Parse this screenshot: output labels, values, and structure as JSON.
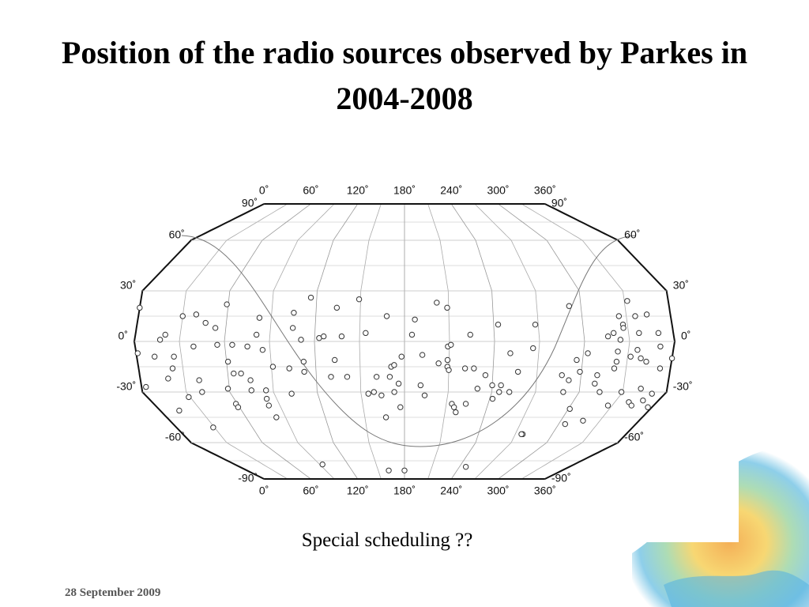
{
  "title": "Position of the radio sources observed by Parkes in 2004-2008",
  "subtitle": "Special scheduling ??",
  "date": "28 September 2009",
  "chart_data": {
    "type": "scatter",
    "xlim": [
      0,
      360
    ],
    "xticks": [
      {
        "value": 0,
        "label": "0˚"
      },
      {
        "value": 60,
        "label": "60˚"
      },
      {
        "value": 120,
        "label": "120˚"
      },
      {
        "value": 180,
        "label": "180˚"
      },
      {
        "value": 240,
        "label": "240˚"
      },
      {
        "value": 300,
        "label": "300˚"
      },
      {
        "value": 360,
        "label": "360˚"
      }
    ],
    "ylim": [
      -90,
      90
    ],
    "yticks": [
      {
        "value": -90,
        "label": "-90˚"
      },
      {
        "value": -60,
        "label": "-60˚"
      },
      {
        "value": -30,
        "label": "-30˚"
      },
      {
        "value": 0,
        "label": "0˚"
      },
      {
        "value": 30,
        "label": "30˚"
      },
      {
        "value": 60,
        "label": "60˚"
      },
      {
        "value": 90,
        "label": "90˚"
      }
    ],
    "color": "#333333",
    "grid": true,
    "x": [
      0,
      1,
      3,
      17,
      20,
      12,
      19,
      23,
      25,
      14,
      30,
      29,
      39,
      39,
      40,
      41,
      46,
      29,
      53,
      55,
      59,
      61,
      59,
      65,
      64,
      59,
      59,
      69,
      75,
      75,
      75,
      81,
      82,
      85,
      85,
      83,
      82,
      91,
      83,
      102,
      102,
      105,
      105,
      111,
      112,
      112,
      116,
      123,
      126,
      130,
      133,
      134,
      138,
      141,
      149,
      154,
      155,
      159,
      161,
      164,
      166,
      168,
      170,
      171,
      173,
      173,
      176,
      177,
      178,
      180,
      185,
      187,
      191,
      192,
      194,
      202,
      203,
      209,
      209,
      209,
      209,
      210,
      211,
      214,
      216,
      218,
      221,
      224,
      224,
      227,
      230,
      235,
      240,
      242,
      243,
      245,
      246,
      252,
      251,
      257,
      276,
      266,
      268,
      287,
      289,
      305,
      292,
      292,
      301,
      296,
      299,
      317,
      303,
      310,
      311,
      314,
      327,
      316,
      320,
      322,
      323,
      323,
      325,
      324,
      329,
      327,
      327,
      332,
      340,
      332,
      344,
      336,
      336,
      337,
      339,
      342,
      349,
      344,
      343,
      357,
      351,
      350,
      351,
      353,
      360,
      93,
      162,
      247,
      275
    ],
    "y": [
      20,
      -7,
      -27,
      1,
      4,
      -9,
      -22,
      -16,
      -9,
      -41,
      15,
      -33,
      16,
      -3,
      -23,
      -30,
      11,
      -51,
      8,
      -2,
      22,
      -12,
      -28,
      -2,
      -19,
      -37,
      -39,
      -19,
      -3,
      -23,
      -29,
      4,
      14,
      -5,
      -29,
      -34,
      -38,
      -15,
      -45,
      -16,
      -31,
      8,
      17,
      1,
      -18,
      -12,
      26,
      2,
      3,
      -21,
      -11,
      20,
      3,
      -21,
      25,
      5,
      -31,
      -30,
      -21,
      -32,
      -45,
      15,
      -21,
      -15,
      -14,
      -30,
      -25,
      -39,
      -9,
      -83,
      4,
      13,
      -26,
      -8,
      -32,
      23,
      -13,
      20,
      -3,
      -11,
      -15,
      -17,
      -2,
      -37,
      -39,
      -42,
      -16,
      -37,
      4,
      -16,
      -28,
      -20,
      -26,
      -34,
      10,
      -30,
      -26,
      -30,
      -7,
      -18,
      -55,
      -4,
      10,
      -20,
      -30,
      -49,
      21,
      -23,
      -40,
      -11,
      -18,
      -47,
      -7,
      -25,
      -20,
      -30,
      -38,
      3,
      5,
      -16,
      -12,
      -6,
      15,
      1,
      -30,
      10,
      8,
      24,
      -36,
      -9,
      -38,
      15,
      -5,
      5,
      -10,
      -28,
      -35,
      16,
      -12,
      -39,
      -31,
      5,
      -3,
      -16,
      -10,
      -78,
      -83,
      -80,
      -55
    ]
  }
}
